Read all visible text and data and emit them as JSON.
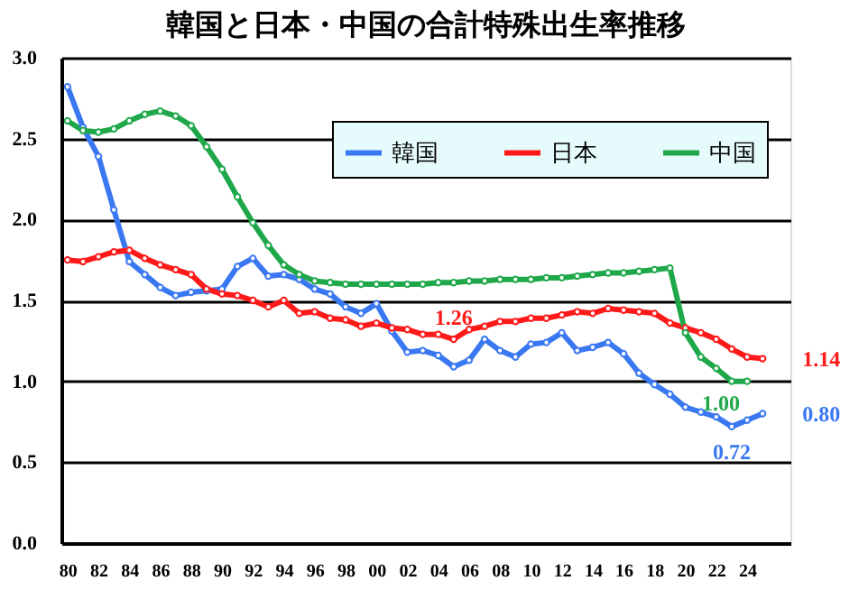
{
  "chart_data": {
    "type": "line",
    "title": "韓国と日本・中国の合計特殊出生率推移",
    "x": [
      1980,
      1981,
      1982,
      1983,
      1984,
      1985,
      1986,
      1987,
      1988,
      1989,
      1990,
      1991,
      1992,
      1993,
      1994,
      1995,
      1996,
      1997,
      1998,
      1999,
      2000,
      2001,
      2002,
      2003,
      2004,
      2005,
      2006,
      2007,
      2008,
      2009,
      2010,
      2011,
      2012,
      2013,
      2014,
      2015,
      2016,
      2017,
      2018,
      2019,
      2020,
      2021,
      2022,
      2023,
      2024,
      2025
    ],
    "series": [
      {
        "name": "韓国",
        "color": "#3a78f2",
        "values": [
          2.82,
          2.57,
          2.39,
          2.06,
          1.74,
          1.66,
          1.58,
          1.53,
          1.55,
          1.56,
          1.57,
          1.71,
          1.76,
          1.65,
          1.66,
          1.63,
          1.57,
          1.54,
          1.46,
          1.42,
          1.48,
          1.31,
          1.18,
          1.19,
          1.16,
          1.09,
          1.13,
          1.26,
          1.19,
          1.15,
          1.23,
          1.24,
          1.3,
          1.19,
          1.21,
          1.24,
          1.17,
          1.05,
          0.98,
          0.92,
          0.84,
          0.81,
          0.78,
          0.72,
          0.76,
          0.8
        ]
      },
      {
        "name": "日本",
        "color": "#ff1a1a",
        "values": [
          1.75,
          1.74,
          1.77,
          1.8,
          1.81,
          1.76,
          1.72,
          1.69,
          1.66,
          1.57,
          1.54,
          1.53,
          1.5,
          1.46,
          1.5,
          1.42,
          1.43,
          1.39,
          1.38,
          1.34,
          1.36,
          1.33,
          1.32,
          1.29,
          1.29,
          1.26,
          1.32,
          1.34,
          1.37,
          1.37,
          1.39,
          1.39,
          1.41,
          1.43,
          1.42,
          1.45,
          1.44,
          1.43,
          1.42,
          1.36,
          1.33,
          1.3,
          1.26,
          1.2,
          1.15,
          1.14
        ]
      },
      {
        "name": "中国",
        "color": "#1fa84a",
        "values": [
          2.61,
          2.55,
          2.54,
          2.56,
          2.61,
          2.65,
          2.67,
          2.64,
          2.58,
          2.45,
          2.31,
          2.14,
          1.98,
          1.84,
          1.72,
          1.66,
          1.62,
          1.61,
          1.6,
          1.6,
          1.6,
          1.6,
          1.6,
          1.6,
          1.61,
          1.61,
          1.62,
          1.62,
          1.63,
          1.63,
          1.63,
          1.64,
          1.64,
          1.65,
          1.66,
          1.67,
          1.67,
          1.68,
          1.69,
          1.7,
          1.3,
          1.15,
          1.08,
          1.0,
          1.0,
          null
        ]
      }
    ],
    "xlim": [
      1979.6,
      2026.8
    ],
    "xticks": [
      {
        "value": 1980,
        "label": "80"
      },
      {
        "value": 1982,
        "label": "82"
      },
      {
        "value": 1984,
        "label": "84"
      },
      {
        "value": 1986,
        "label": "86"
      },
      {
        "value": 1988,
        "label": "88"
      },
      {
        "value": 1990,
        "label": "90"
      },
      {
        "value": 1992,
        "label": "92"
      },
      {
        "value": 1994,
        "label": "94"
      },
      {
        "value": 1996,
        "label": "96"
      },
      {
        "value": 1998,
        "label": "98"
      },
      {
        "value": 2000,
        "label": "00"
      },
      {
        "value": 2002,
        "label": "02"
      },
      {
        "value": 2004,
        "label": "04"
      },
      {
        "value": 2006,
        "label": "06"
      },
      {
        "value": 2008,
        "label": "08"
      },
      {
        "value": 2010,
        "label": "10"
      },
      {
        "value": 2012,
        "label": "12"
      },
      {
        "value": 2014,
        "label": "14"
      },
      {
        "value": 2016,
        "label": "16"
      },
      {
        "value": 2018,
        "label": "18"
      },
      {
        "value": 2020,
        "label": "20"
      },
      {
        "value": 2022,
        "label": "22"
      },
      {
        "value": 2024,
        "label": "24"
      }
    ],
    "ylim": [
      0,
      3
    ],
    "yticks": [
      {
        "value": 0,
        "label": "0.0"
      },
      {
        "value": 0.5,
        "label": "0.5"
      },
      {
        "value": 1,
        "label": "1.0"
      },
      {
        "value": 1.5,
        "label": "1.5"
      },
      {
        "value": 2,
        "label": "2.0"
      },
      {
        "value": 2.5,
        "label": "2.5"
      },
      {
        "value": 3,
        "label": "3.0"
      }
    ],
    "grid": "y",
    "legend": "top",
    "marker": "circle",
    "line_style": "solid",
    "annotations": [
      {
        "text": "1.26",
        "x": 2005,
        "y": 1.26
      },
      {
        "text": "1.14",
        "x": 2025,
        "y": 1.14
      },
      {
        "text": "1.00",
        "x": 2023,
        "y": 1.0
      },
      {
        "text": "0.72",
        "x": 2023,
        "y": 0.72
      },
      {
        "text": "0.80",
        "x": 2025,
        "y": 0.8
      }
    ]
  }
}
